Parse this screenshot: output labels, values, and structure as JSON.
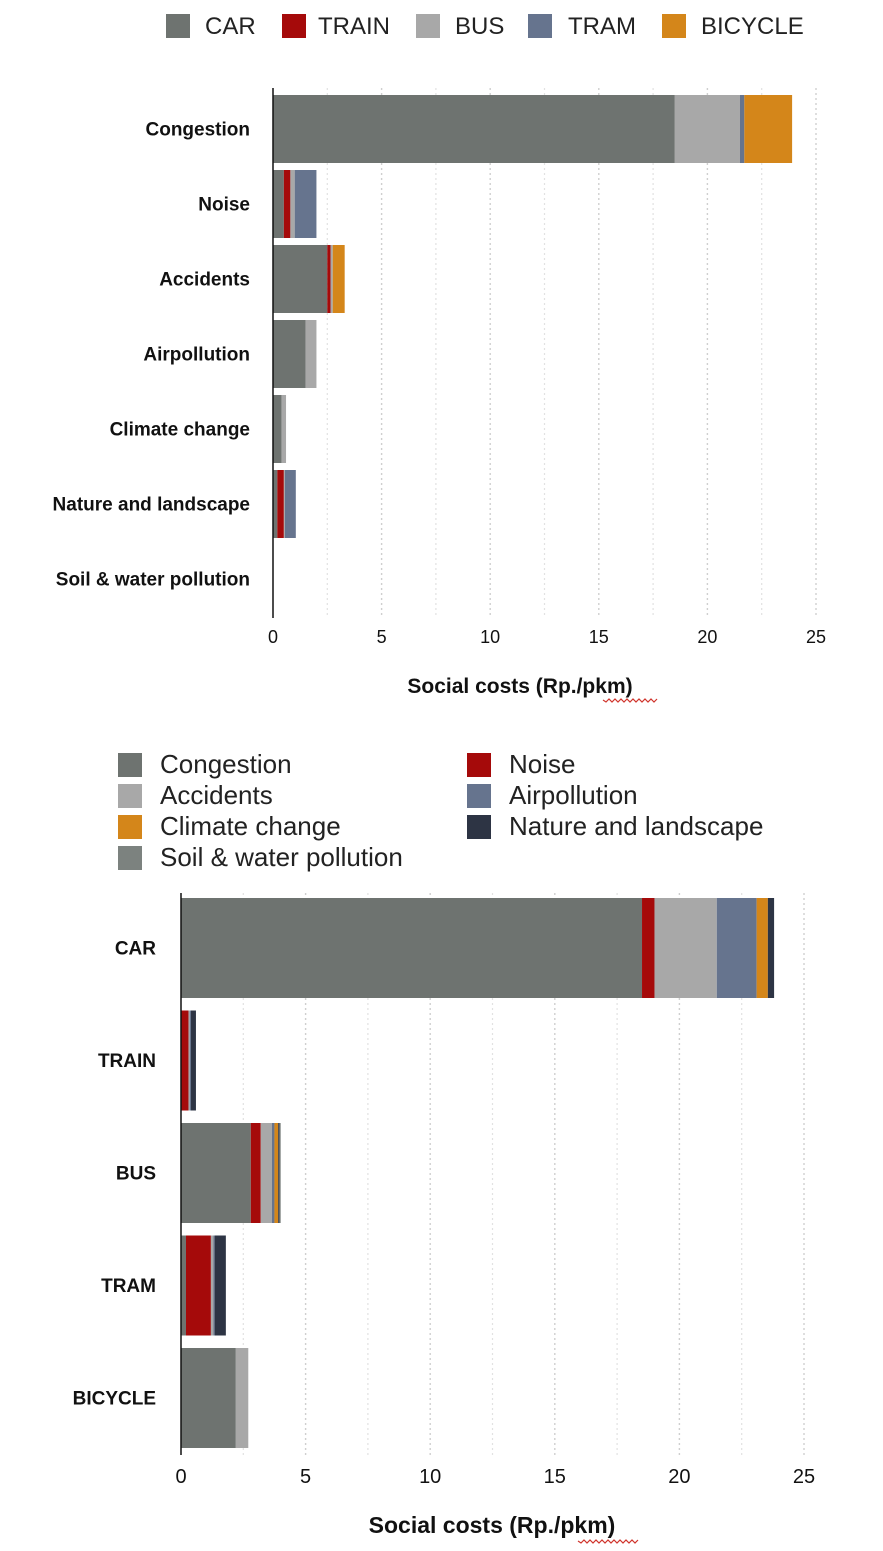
{
  "chart_data": [
    {
      "type": "bar",
      "orientation": "horizontal",
      "stacked": true,
      "categories": [
        "Congestion",
        "Noise",
        "Accidents",
        "Airpollution",
        "Climate change",
        "Nature and landscape",
        "Soil & water pollution"
      ],
      "series": [
        {
          "name": "CAR",
          "color": "#6e7370",
          "values": [
            18.5,
            0.5,
            2.5,
            1.5,
            0.4,
            0.2,
            0
          ]
        },
        {
          "name": "TRAIN",
          "color": "#a50a0a",
          "values": [
            0,
            0.3,
            0.15,
            0,
            0,
            0.3,
            0
          ]
        },
        {
          "name": "BUS",
          "color": "#a8a8a8",
          "values": [
            3.0,
            0.2,
            0.1,
            0.5,
            0.2,
            0.05,
            0
          ]
        },
        {
          "name": "TRAM",
          "color": "#66748e",
          "values": [
            0.2,
            1.0,
            0,
            0,
            0,
            0.5,
            0
          ]
        },
        {
          "name": "BICYCLE",
          "color": "#d4861a",
          "values": [
            2.2,
            0,
            0.55,
            0,
            0,
            0,
            0
          ]
        }
      ],
      "xlabel": "Social costs (Rp./pkm)",
      "xlim": [
        0,
        25
      ],
      "xticks": [
        "0",
        "5",
        "10",
        "15",
        "20",
        "25"
      ],
      "grid": "vertical dotted",
      "legend_position": "top"
    },
    {
      "type": "bar",
      "orientation": "horizontal",
      "stacked": true,
      "categories": [
        "CAR",
        "TRAIN",
        "BUS",
        "TRAM",
        "BICYCLE"
      ],
      "series": [
        {
          "name": "Congestion",
          "color": "#6e7370",
          "values": [
            18.5,
            0,
            2.8,
            0.2,
            2.2
          ]
        },
        {
          "name": "Noise",
          "color": "#a50a0a",
          "values": [
            0.5,
            0.3,
            0.4,
            1.0,
            0
          ]
        },
        {
          "name": "Accidents",
          "color": "#a8a8a8",
          "values": [
            2.5,
            0.05,
            0.45,
            0.1,
            0.5
          ]
        },
        {
          "name": "Airpollution",
          "color": "#66748e",
          "values": [
            1.6,
            0.05,
            0.1,
            0.05,
            0
          ]
        },
        {
          "name": "Climate change",
          "color": "#d4861a",
          "values": [
            0.45,
            0,
            0.15,
            0,
            0
          ]
        },
        {
          "name": "Nature and landscape",
          "color": "#2d3444",
          "values": [
            0.25,
            0.2,
            0.05,
            0.45,
            0
          ]
        },
        {
          "name": "Soil & water pollution",
          "color": "#7c827f",
          "values": [
            0,
            0,
            0.05,
            0,
            0
          ]
        }
      ],
      "xlabel": "Social costs (Rp./pkm)",
      "xlim": [
        0,
        25
      ],
      "xticks": [
        "0",
        "5",
        "10",
        "15",
        "20",
        "25"
      ],
      "grid": "vertical dotted",
      "legend_position": "top"
    }
  ]
}
